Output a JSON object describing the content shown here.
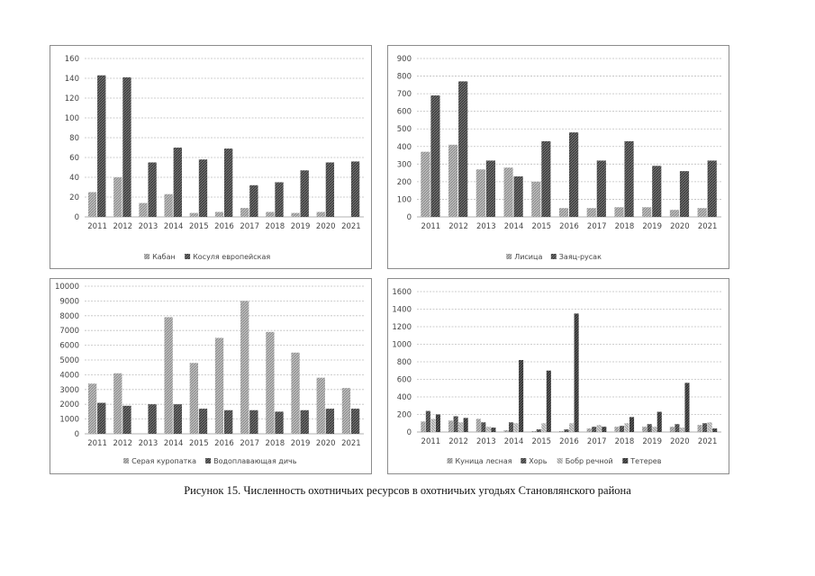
{
  "caption": "Рисунок 15. Численность охотничьих ресурсов в охотничьих угодьях Становлянского района",
  "colors": {
    "series_a": "#8a8a8a",
    "series_b": "#3a3a3a",
    "series_c": "#b5b5b5",
    "series_d": "#555555"
  },
  "chart_data": [
    {
      "type": "bar",
      "categories": [
        "2011",
        "2012",
        "2013",
        "2014",
        "2015",
        "2016",
        "2017",
        "2018",
        "2019",
        "2020",
        "2021"
      ],
      "ylim": [
        0,
        160
      ],
      "yticks": [
        "0",
        "20",
        "40",
        "60",
        "80",
        "100",
        "120",
        "140",
        "160"
      ],
      "series": [
        {
          "name": "Кабан",
          "values": [
            25,
            40,
            14,
            23,
            4,
            5,
            9,
            5,
            4,
            5,
            0
          ]
        },
        {
          "name": "Косуля европейская",
          "values": [
            143,
            141,
            55,
            70,
            58,
            69,
            32,
            35,
            47,
            55,
            56
          ]
        }
      ]
    },
    {
      "type": "bar",
      "categories": [
        "2011",
        "2012",
        "2013",
        "2014",
        "2015",
        "2016",
        "2017",
        "2018",
        "2019",
        "2020",
        "2021"
      ],
      "ylim": [
        0,
        900
      ],
      "yticks": [
        "0",
        "100",
        "200",
        "300",
        "400",
        "500",
        "600",
        "700",
        "800",
        "900"
      ],
      "series": [
        {
          "name": "Лисица",
          "values": [
            370,
            410,
            270,
            280,
            200,
            50,
            50,
            55,
            55,
            40,
            50
          ]
        },
        {
          "name": "Заяц-русак",
          "values": [
            690,
            770,
            320,
            230,
            430,
            480,
            320,
            430,
            290,
            260,
            320
          ]
        }
      ]
    },
    {
      "type": "bar",
      "categories": [
        "2011",
        "2012",
        "2013",
        "2014",
        "2015",
        "2016",
        "2017",
        "2018",
        "2019",
        "2020",
        "2021"
      ],
      "ylim": [
        0,
        10000
      ],
      "yticks": [
        "0",
        "1000",
        "2000",
        "3000",
        "4000",
        "5000",
        "6000",
        "7000",
        "8000",
        "9000",
        "10000"
      ],
      "series": [
        {
          "name": "Серая куропатка",
          "values": [
            3400,
            4100,
            0,
            7900,
            4800,
            6500,
            9000,
            6900,
            5500,
            3800,
            3100
          ]
        },
        {
          "name": "Водоплавающая дичь",
          "values": [
            2100,
            1900,
            2000,
            2000,
            1700,
            1600,
            1600,
            1500,
            1600,
            1700,
            1700
          ]
        }
      ]
    },
    {
      "type": "bar",
      "categories": [
        "2011",
        "2012",
        "2013",
        "2014",
        "2015",
        "2016",
        "2017",
        "2018",
        "2019",
        "2020",
        "2021"
      ],
      "ylim": [
        0,
        1600
      ],
      "yticks": [
        "0",
        "200",
        "400",
        "600",
        "800",
        "1000",
        "1200",
        "1400",
        "1600"
      ],
      "series": [
        {
          "name": "Куница лесная",
          "values": [
            120,
            130,
            150,
            20,
            10,
            10,
            40,
            60,
            60,
            60,
            80
          ]
        },
        {
          "name": "Хорь",
          "values": [
            240,
            180,
            110,
            110,
            30,
            30,
            60,
            70,
            90,
            90,
            100
          ]
        },
        {
          "name": "Бобр речной",
          "values": [
            150,
            110,
            60,
            100,
            100,
            100,
            80,
            100,
            60,
            50,
            110
          ]
        },
        {
          "name": "Тетерев",
          "values": [
            200,
            160,
            50,
            820,
            700,
            1350,
            60,
            170,
            230,
            560,
            40
          ]
        }
      ]
    }
  ]
}
